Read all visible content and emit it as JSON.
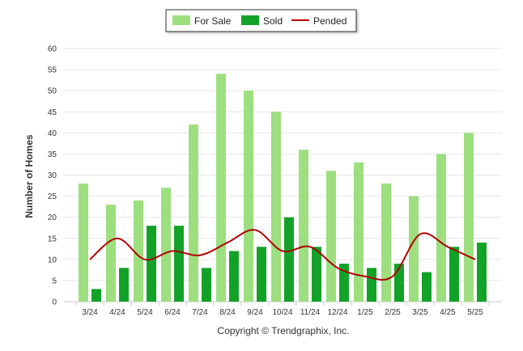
{
  "chart_data": {
    "type": "bar",
    "categories": [
      "3/24",
      "4/24",
      "5/24",
      "6/24",
      "7/24",
      "8/24",
      "9/24",
      "10/24",
      "11/24",
      "12/24",
      "1/25",
      "2/25",
      "3/25",
      "4/25",
      "5/25"
    ],
    "series": [
      {
        "name": "For Sale",
        "kind": "bar",
        "color": "#9ddf7f",
        "values": [
          28,
          23,
          24,
          27,
          42,
          54,
          50,
          45,
          36,
          31,
          33,
          28,
          25,
          35,
          40
        ]
      },
      {
        "name": "Sold",
        "kind": "bar",
        "color": "#13a228",
        "values": [
          3,
          8,
          18,
          18,
          8,
          12,
          13,
          20,
          13,
          9,
          8,
          9,
          7,
          13,
          14
        ]
      },
      {
        "name": "Pended",
        "kind": "line",
        "color": "#b00000",
        "values": [
          10,
          15,
          10,
          12,
          11,
          14,
          17,
          12,
          13,
          8,
          6,
          6,
          16,
          13,
          10
        ]
      }
    ],
    "ylabel": "Number of Homes",
    "xlabel": "",
    "ylim": [
      0,
      60
    ],
    "yticks": [
      0,
      5,
      10,
      15,
      20,
      25,
      30,
      35,
      40,
      45,
      50,
      55,
      60
    ],
    "grid": true,
    "legend_position": "top-center",
    "credit": "Copyright © Trendgraphix, Inc."
  }
}
